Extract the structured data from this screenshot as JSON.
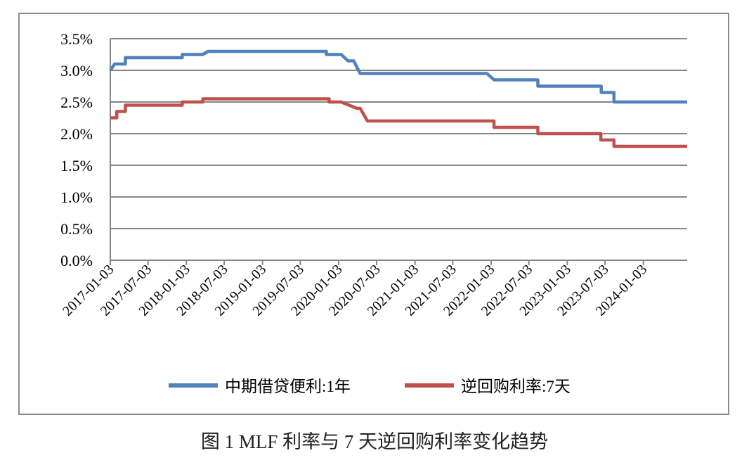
{
  "caption": "图 1 MLF 利率与 7 天逆回购利率变化趋势",
  "chart_data": {
    "type": "line",
    "title": "",
    "xlabel": "",
    "ylabel": "",
    "ylim": [
      0,
      3.5
    ],
    "y_ticks": [
      "0.0%",
      "0.5%",
      "1.0%",
      "1.5%",
      "2.0%",
      "2.5%",
      "3.0%",
      "3.5%"
    ],
    "y_tick_values": [
      0,
      0.5,
      1.0,
      1.5,
      2.0,
      2.5,
      3.0,
      3.5
    ],
    "x_range": [
      "2017-01-03",
      "2024-07-31"
    ],
    "x_ticks": [
      "2017-01-03",
      "2017-07-03",
      "2018-01-03",
      "2018-07-03",
      "2019-01-03",
      "2019-07-03",
      "2020-01-03",
      "2020-07-03",
      "2021-01-03",
      "2021-07-03",
      "2022-01-03",
      "2022-07-03",
      "2023-01-03",
      "2023-07-03",
      "2024-01-03"
    ],
    "grid": "horizontal",
    "legend_position": "bottom",
    "series": [
      {
        "name": "中期借贷便利:1年",
        "color": "#4F81BD",
        "points": [
          [
            "2017-01-03",
            3.0
          ],
          [
            "2017-01-24",
            3.1
          ],
          [
            "2017-03-16",
            3.1
          ],
          [
            "2017-03-16",
            3.2
          ],
          [
            "2017-12-14",
            3.2
          ],
          [
            "2017-12-14",
            3.25
          ],
          [
            "2018-03-22",
            3.25
          ],
          [
            "2018-04-17",
            3.3
          ],
          [
            "2019-11-05",
            3.3
          ],
          [
            "2019-11-05",
            3.25
          ],
          [
            "2020-01-15",
            3.25
          ],
          [
            "2020-02-17",
            3.15
          ],
          [
            "2020-03-15",
            3.15
          ],
          [
            "2020-04-15",
            2.95
          ],
          [
            "2021-12-14",
            2.95
          ],
          [
            "2022-01-17",
            2.85
          ],
          [
            "2022-08-15",
            2.85
          ],
          [
            "2022-08-15",
            2.75
          ],
          [
            "2023-06-15",
            2.75
          ],
          [
            "2023-06-15",
            2.65
          ],
          [
            "2023-08-15",
            2.65
          ],
          [
            "2023-08-15",
            2.5
          ],
          [
            "2024-07-31",
            2.5
          ]
        ]
      },
      {
        "name": "逆回购利率:7天",
        "color": "#C0504D",
        "points": [
          [
            "2017-01-03",
            2.25
          ],
          [
            "2017-02-03",
            2.25
          ],
          [
            "2017-02-03",
            2.35
          ],
          [
            "2017-03-16",
            2.35
          ],
          [
            "2017-03-16",
            2.45
          ],
          [
            "2017-12-14",
            2.45
          ],
          [
            "2017-12-14",
            2.5
          ],
          [
            "2018-03-23",
            2.5
          ],
          [
            "2018-03-23",
            2.55
          ],
          [
            "2019-11-18",
            2.55
          ],
          [
            "2019-11-18",
            2.5
          ],
          [
            "2020-01-15",
            2.5
          ],
          [
            "2020-03-30",
            2.4
          ],
          [
            "2020-04-15",
            2.4
          ],
          [
            "2020-05-20",
            2.2
          ],
          [
            "2022-01-17",
            2.2
          ],
          [
            "2022-01-17",
            2.1
          ],
          [
            "2022-08-15",
            2.1
          ],
          [
            "2022-08-15",
            2.0
          ],
          [
            "2023-06-13",
            2.0
          ],
          [
            "2023-06-13",
            1.9
          ],
          [
            "2023-08-15",
            1.9
          ],
          [
            "2023-08-15",
            1.8
          ],
          [
            "2024-07-31",
            1.8
          ]
        ]
      }
    ]
  }
}
